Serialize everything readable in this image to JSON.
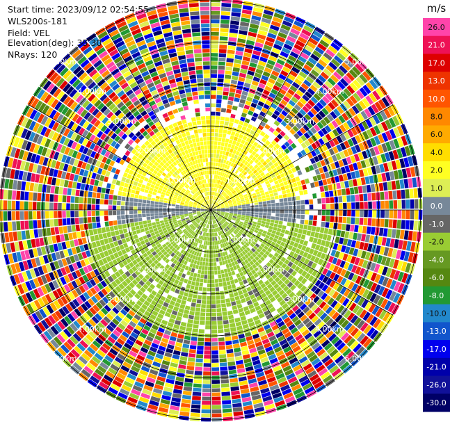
{
  "header": {
    "start_time": "Start time: 2023/09/12 02:54:55",
    "instrument": "WLS200s-181",
    "field": "Field: VEL",
    "elevation": "Elevation(deg): 35.30",
    "nrays": "NRays: 120"
  },
  "chart_data": {
    "type": "heatmap",
    "subtype": "polar-ppi",
    "field": "VEL",
    "units": "m/s",
    "nrays": 120,
    "elevation_deg": 35.3,
    "range_rings_km": [
      1.0,
      2.0,
      3.0,
      4.0,
      5.0
    ],
    "ring_labels": [
      "1.00km",
      "2.00km",
      "3.00km",
      "4.00km",
      "5.00km"
    ],
    "max_range_km": 5.0,
    "colorbar": {
      "unit_label": "m/s",
      "ticks": [
        "26.0",
        "21.0",
        "17.0",
        "13.0",
        "10.0",
        "8.0",
        "6.0",
        "4.0",
        "2.0",
        "1.0",
        "0.0",
        "-1.0",
        "-2.0",
        "-4.0",
        "-6.0",
        "-8.0",
        "-10.0",
        "-13.0",
        "-17.0",
        "-21.0",
        "-26.0",
        "-30.0"
      ],
      "colors": [
        "#ff44aa",
        "#ee1155",
        "#dd0000",
        "#ee3300",
        "#ff5500",
        "#ff8800",
        "#ffaa00",
        "#ffdd00",
        "#ffff22",
        "#ddee55",
        "#778899",
        "#666666",
        "#99cc33",
        "#669922",
        "#558811",
        "#229933",
        "#2288cc",
        "#1155cc",
        "#0000ee",
        "#0000aa",
        "#111199",
        "#000066"
      ]
    },
    "regions": [
      {
        "range_km": [
          0,
          2.2
        ],
        "azimuth_deg": [
          280,
          80
        ],
        "velocity_ms": 2.0
      },
      {
        "range_km": [
          0,
          0.8
        ],
        "azimuth_deg": [
          330,
          30
        ],
        "velocity_ms": 6.0
      },
      {
        "range_km": [
          0,
          2.2
        ],
        "azimuth_deg": [
          80,
          100
        ],
        "velocity_ms": 0.0
      },
      {
        "range_km": [
          0,
          2.2
        ],
        "azimuth_deg": [
          260,
          280
        ],
        "velocity_ms": 0.0
      },
      {
        "range_km": [
          0,
          3.0
        ],
        "azimuth_deg": [
          100,
          260
        ],
        "velocity_ms": -2.0
      },
      {
        "range_km": [
          0,
          0.6
        ],
        "azimuth_deg": [
          140,
          220
        ],
        "velocity_ms": -6.0
      },
      {
        "range_km": [
          2.2,
          5.0
        ],
        "azimuth_deg": [
          0,
          360
        ],
        "velocity_ms": "noise"
      }
    ]
  }
}
